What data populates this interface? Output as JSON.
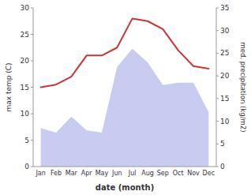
{
  "chart_data": {
    "type": "line",
    "xlabel": "date (month)",
    "ylabel": "max temp (C)",
    "y2label": "med. precipitation (kg/m2)",
    "categories": [
      "Jan",
      "Feb",
      "Mar",
      "Apr",
      "May",
      "Jun",
      "Jul",
      "Aug",
      "Sep",
      "Oct",
      "Nov",
      "Dec"
    ],
    "series": [
      {
        "type": "area",
        "axis": "y2",
        "color": "#c8ccf0",
        "values": [
          8.5,
          7.5,
          11.0,
          8.0,
          7.5,
          22.0,
          26.0,
          23.0,
          18.0,
          18.5,
          18.5,
          12.0
        ]
      },
      {
        "type": "line",
        "color": "#cc3333",
        "values": [
          15.0,
          15.5,
          17.0,
          21.0,
          21.0,
          22.5,
          28.0,
          27.5,
          26.0,
          22.0,
          19.0,
          18.5
        ]
      }
    ],
    "ylim": [
      0,
      30
    ],
    "yticks": [
      0,
      5,
      10,
      15,
      20,
      25,
      30
    ],
    "y2lim": [
      0,
      35
    ],
    "y2ticks": [
      0,
      5,
      10,
      15,
      20,
      25,
      30,
      35
    ],
    "grid": false
  }
}
